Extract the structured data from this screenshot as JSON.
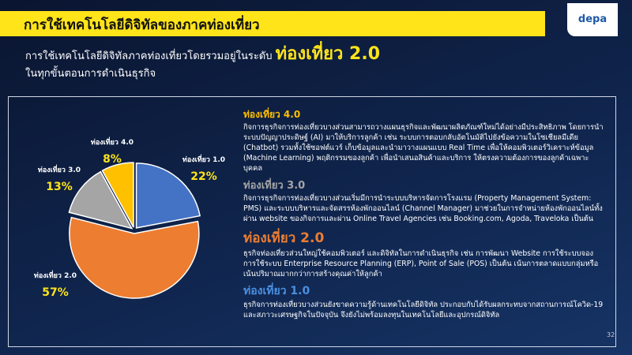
{
  "header": {
    "title": "การใช้เทคโนโลยีดิจิทัลของภาคท่องเที่ยว",
    "logo": "depa",
    "subtitle": "การใช้เทคโนโลยีดิจิทัลภาคท่องเที่ยวโดยรวมอยู่ในระดับ",
    "subtitle_highlight": "ท่องเที่ยว 2.0",
    "subtitle_line2": "ในทุกขั้นตอนการดำเนินธุรกิจ"
  },
  "chart_data": {
    "type": "pie",
    "categories": [
      "ท่องเที่ยว 1.0",
      "ท่องเที่ยว 2.0",
      "ท่องเที่ยว 3.0",
      "ท่องเที่ยว 4.0"
    ],
    "values": [
      22,
      57,
      13,
      8
    ],
    "value_labels": [
      "22%",
      "57%",
      "13%",
      "8%"
    ],
    "colors": [
      "#4472c4",
      "#ed7d31",
      "#a5a5a5",
      "#ffc000"
    ]
  },
  "descriptions": [
    {
      "heading": "ท่องเที่ยว 4.0",
      "color": "#ffc000",
      "text": "กิจการธุรกิจการท่องเที่ยวบางส่วนสามารถวางแผนธุรกิจและพัฒนาผลิตภัณฑ์ใหม่ได้อย่างมีประสิทธิภาพ โดยการนำระบบปัญญาประดิษฐ์ (AI) มาให้บริการลูกค้า เช่น ระบบการตอบกลับอัตโนมัติไปยังข้อความในโซเชียลมีเดีย (Chatbot) รวมทั้งใช้ซอฟต์แวร์ เก็บข้อมูลและนำมาวางแผนแบบ Real Time เพื่อให้คอมพิวเตอร์วิเคราะห์ข้อมูล (Machine Learning) พฤติกรรมของลูกค้า เพื่อนำเสนอสินค้าและบริการ ให้ตรงความต้องการของลูกค้าเฉพาะบุคคล"
    },
    {
      "heading": "ท่องเที่ยว 3.0",
      "color": "#a5a5a5",
      "text": "กิจการธุรกิจการท่องเที่ยวบางส่วนเริ่มมีการนำระบบบริหารจัดการโรงแรม (Property Management System: PMS) และระบบบริหารและจัดสรรห้องพักออนไลน์ (Channel Manager) มาช่วยในการจำหน่ายห้องพักออนไลน์ทั้งผ่าน website ของกิจการและผ่าน Online Travel Agencies เช่น Booking.com, Agoda, Traveloka เป็นต้น"
    },
    {
      "heading": "ท่องเที่ยว 2.0",
      "color": "#ed7d31",
      "text": "ธุรกิจท่องเที่ยวส่วนใหญ่ใช้คอมพิวเตอร์ และดิจิทัลในการดำเนินธุรกิจ เช่น การพัฒนา Website การใช้ระบบจอง การใช้ระบบ Enterprise Resource Planning (ERP), Point of Sale (POS) เป็นต้น เน้นการตลาดแบบกลุ่มหรือเน้นปริมาณมากกว่าการสร้างคุณค่าให้ลูกค้า"
    },
    {
      "heading": "ท่องเที่ยว 1.0",
      "color": "#4a90e2",
      "text": "ธุรกิจการท่องเที่ยวบางส่วนยังขาดความรู้ด้านเทคโนโลยีดิจิทัล ประกอบกับได้รับผลกระทบจากสถานการณ์โควิด-19 และสภาวะเศรษฐกิจในปัจจุบัน จึงยังไม่พร้อมลงทุนในเทคโนโลยีและอุปกรณ์ดิจิทัล"
    }
  ],
  "page_number": "32"
}
